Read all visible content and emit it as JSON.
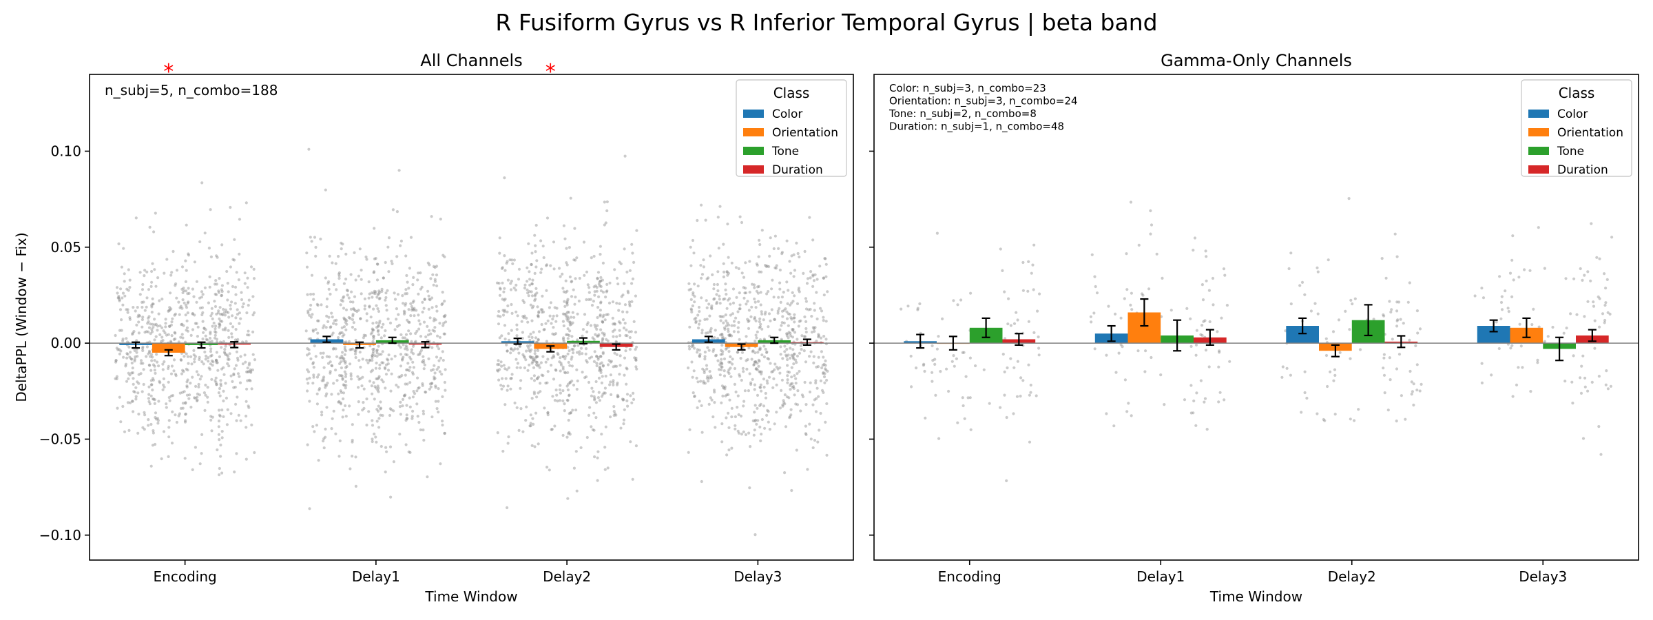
{
  "figure": {
    "suptitle": "R Fusiform Gyrus vs R Inferior Temporal Gyrus  |  beta band"
  },
  "legend": {
    "title": "Class",
    "colors": {
      "Color": "#1f77b4",
      "Orientation": "#ff7f0e",
      "Tone": "#2ca02c",
      "Duration": "#d62728"
    }
  },
  "chart_data": [
    {
      "type": "bar",
      "title": "All Channels",
      "xlabel": "Time Window",
      "ylabel": "DeltaPPL (Window − Fix)",
      "ylim": [
        -0.113,
        0.14
      ],
      "yticks": [
        "0.10",
        "0.05",
        "0.00",
        "−0.05",
        "−0.10"
      ],
      "ytick_values": [
        0.1,
        0.05,
        0.0,
        -0.05,
        -0.1
      ],
      "categories": [
        "Encoding",
        "Delay1",
        "Delay2",
        "Delay3"
      ],
      "series": [
        {
          "name": "Color",
          "values": [
            -0.001,
            0.002,
            0.001,
            0.002
          ],
          "err": [
            0.0015,
            0.0015,
            0.0015,
            0.0015
          ]
        },
        {
          "name": "Orientation",
          "values": [
            -0.005,
            -0.001,
            -0.003,
            -0.002
          ],
          "err": [
            0.0015,
            0.0015,
            0.0015,
            0.0015
          ]
        },
        {
          "name": "Tone",
          "values": [
            -0.001,
            0.0015,
            0.0012,
            0.0015
          ],
          "err": [
            0.0015,
            0.0015,
            0.0015,
            0.0015
          ]
        },
        {
          "name": "Duration",
          "values": [
            -0.0008,
            -0.0008,
            -0.002,
            0.0005
          ],
          "err": [
            0.0015,
            0.0015,
            0.0015,
            0.0015
          ]
        }
      ],
      "significance_markers": [
        {
          "label": "*",
          "category": "Encoding",
          "series": "Orientation"
        },
        {
          "label": "*",
          "category": "Delay2",
          "series": "Orientation"
        }
      ],
      "annotation": [
        "n_subj=5, n_combo=188"
      ],
      "points_per_group": 188,
      "grid": false,
      "legend_position": "top-right"
    },
    {
      "type": "bar",
      "title": "Gamma-Only Channels",
      "xlabel": "Time Window",
      "ylabel": "",
      "ylim": [
        -0.113,
        0.14
      ],
      "yticks": [],
      "ytick_values": [
        0.1,
        0.05,
        0.0,
        -0.05,
        -0.1
      ],
      "categories": [
        "Encoding",
        "Delay1",
        "Delay2",
        "Delay3"
      ],
      "series": [
        {
          "name": "Color",
          "values": [
            0.001,
            0.005,
            0.009,
            0.009
          ],
          "err": [
            0.0035,
            0.004,
            0.004,
            0.003
          ]
        },
        {
          "name": "Orientation",
          "values": [
            0.0,
            0.016,
            -0.004,
            0.008
          ],
          "err": [
            0.0035,
            0.007,
            0.003,
            0.005
          ]
        },
        {
          "name": "Tone",
          "values": [
            0.008,
            0.004,
            0.012,
            -0.003
          ],
          "err": [
            0.005,
            0.008,
            0.008,
            0.006
          ]
        },
        {
          "name": "Duration",
          "values": [
            0.002,
            0.003,
            0.0008,
            0.004
          ],
          "err": [
            0.003,
            0.004,
            0.003,
            0.003
          ]
        }
      ],
      "annotation": [
        "Color: n_subj=3, n_combo=23",
        "Orientation: n_subj=3, n_combo=24",
        "Tone: n_subj=2, n_combo=8",
        "Duration: n_subj=1, n_combo=48"
      ],
      "points_per_group_by_series": [
        23,
        24,
        8,
        48
      ],
      "grid": false,
      "legend_position": "top-right"
    }
  ]
}
